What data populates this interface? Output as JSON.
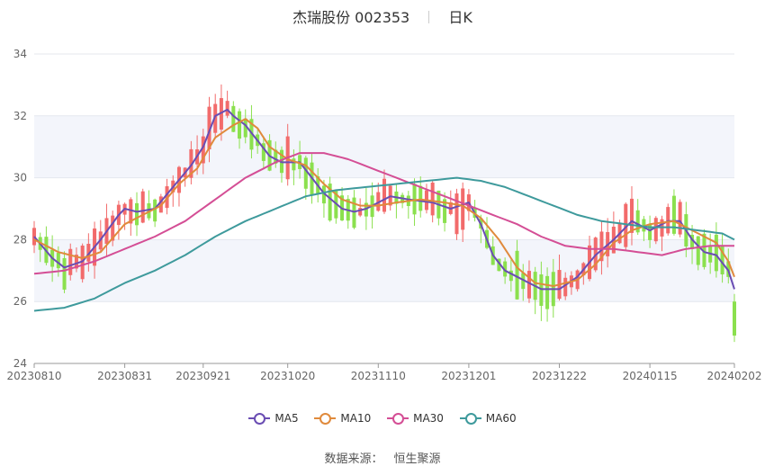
{
  "title": {
    "name": "杰瑞股份 002353",
    "period": "日K"
  },
  "source": {
    "label": "数据来源：",
    "value": "恒生聚源"
  },
  "chart_data": {
    "type": "candlestick",
    "ylim": [
      24,
      34
    ],
    "yticks": [
      24,
      26,
      28,
      30,
      32,
      34
    ],
    "x_tick_labels": [
      "20230810",
      "20230831",
      "20230921",
      "20231020",
      "20231110",
      "20231201",
      "20231222",
      "20240115",
      "20240202"
    ],
    "x_tick_index": [
      0,
      15,
      28,
      42,
      57,
      72,
      87,
      102,
      116
    ],
    "n_days": 117,
    "up_color": "#f26b6b",
    "down_color": "#8be04e",
    "grid": true,
    "band_color": "#f3f5fb",
    "legend_position": "bottom",
    "series": [
      {
        "name": "MA5",
        "color": "#6a4db3",
        "anchors": [
          [
            0,
            28.1
          ],
          [
            3,
            27.4
          ],
          [
            5,
            27.1
          ],
          [
            8,
            27.3
          ],
          [
            11,
            28.0
          ],
          [
            14,
            28.8
          ],
          [
            15,
            29.0
          ],
          [
            17,
            28.9
          ],
          [
            20,
            29.0
          ],
          [
            23,
            29.7
          ],
          [
            26,
            30.4
          ],
          [
            28,
            31.0
          ],
          [
            30,
            32.0
          ],
          [
            32,
            32.2
          ],
          [
            33,
            32.0
          ],
          [
            35,
            31.7
          ],
          [
            37,
            31.2
          ],
          [
            39,
            30.7
          ],
          [
            41,
            30.5
          ],
          [
            42,
            30.5
          ],
          [
            44,
            30.5
          ],
          [
            46,
            30.0
          ],
          [
            48,
            29.5
          ],
          [
            51,
            29.0
          ],
          [
            53,
            28.9
          ],
          [
            55,
            29.0
          ],
          [
            57,
            29.2
          ],
          [
            59,
            29.4
          ],
          [
            62,
            29.3
          ],
          [
            66,
            29.2
          ],
          [
            69,
            29.0
          ],
          [
            72,
            29.2
          ],
          [
            74,
            28.5
          ],
          [
            76,
            27.5
          ],
          [
            78,
            27.0
          ],
          [
            81,
            26.7
          ],
          [
            84,
            26.4
          ],
          [
            87,
            26.4
          ],
          [
            90,
            26.8
          ],
          [
            93,
            27.5
          ],
          [
            96,
            28.0
          ],
          [
            99,
            28.6
          ],
          [
            102,
            28.3
          ],
          [
            105,
            28.6
          ],
          [
            107,
            28.6
          ],
          [
            109,
            28.0
          ],
          [
            111,
            27.6
          ],
          [
            113,
            27.5
          ],
          [
            115,
            27.0
          ],
          [
            116,
            26.4
          ]
        ]
      },
      {
        "name": "MA10",
        "color": "#e08a3c",
        "anchors": [
          [
            0,
            28.0
          ],
          [
            4,
            27.6
          ],
          [
            8,
            27.4
          ],
          [
            11,
            27.6
          ],
          [
            15,
            28.5
          ],
          [
            18,
            28.8
          ],
          [
            21,
            29.1
          ],
          [
            24,
            29.8
          ],
          [
            27,
            30.3
          ],
          [
            30,
            31.3
          ],
          [
            33,
            31.7
          ],
          [
            35,
            31.9
          ],
          [
            37,
            31.6
          ],
          [
            39,
            31.0
          ],
          [
            42,
            30.6
          ],
          [
            45,
            30.4
          ],
          [
            48,
            29.8
          ],
          [
            51,
            29.3
          ],
          [
            54,
            29.1
          ],
          [
            57,
            29.1
          ],
          [
            60,
            29.2
          ],
          [
            64,
            29.3
          ],
          [
            68,
            29.2
          ],
          [
            71,
            29.1
          ],
          [
            74,
            28.7
          ],
          [
            77,
            28.0
          ],
          [
            80,
            27.1
          ],
          [
            83,
            26.6
          ],
          [
            86,
            26.5
          ],
          [
            90,
            26.7
          ],
          [
            93,
            27.2
          ],
          [
            96,
            27.9
          ],
          [
            99,
            28.3
          ],
          [
            102,
            28.5
          ],
          [
            106,
            28.6
          ],
          [
            110,
            28.2
          ],
          [
            113,
            27.9
          ],
          [
            115,
            27.3
          ],
          [
            116,
            26.8
          ]
        ]
      },
      {
        "name": "MA30",
        "color": "#d44e95",
        "anchors": [
          [
            0,
            26.9
          ],
          [
            5,
            27.0
          ],
          [
            10,
            27.3
          ],
          [
            15,
            27.7
          ],
          [
            20,
            28.1
          ],
          [
            25,
            28.6
          ],
          [
            30,
            29.3
          ],
          [
            35,
            30.0
          ],
          [
            40,
            30.5
          ],
          [
            44,
            30.8
          ],
          [
            48,
            30.8
          ],
          [
            52,
            30.6
          ],
          [
            56,
            30.3
          ],
          [
            60,
            30.0
          ],
          [
            64,
            29.7
          ],
          [
            68,
            29.4
          ],
          [
            72,
            29.1
          ],
          [
            76,
            28.8
          ],
          [
            80,
            28.5
          ],
          [
            84,
            28.1
          ],
          [
            88,
            27.8
          ],
          [
            92,
            27.7
          ],
          [
            96,
            27.7
          ],
          [
            100,
            27.6
          ],
          [
            104,
            27.5
          ],
          [
            108,
            27.7
          ],
          [
            112,
            27.8
          ],
          [
            116,
            27.8
          ]
        ]
      },
      {
        "name": "MA60",
        "color": "#3e9a9c",
        "anchors": [
          [
            0,
            25.7
          ],
          [
            5,
            25.8
          ],
          [
            10,
            26.1
          ],
          [
            15,
            26.6
          ],
          [
            20,
            27.0
          ],
          [
            25,
            27.5
          ],
          [
            30,
            28.1
          ],
          [
            35,
            28.6
          ],
          [
            40,
            29.0
          ],
          [
            45,
            29.4
          ],
          [
            50,
            29.6
          ],
          [
            55,
            29.7
          ],
          [
            60,
            29.8
          ],
          [
            65,
            29.9
          ],
          [
            70,
            30.0
          ],
          [
            74,
            29.9
          ],
          [
            78,
            29.7
          ],
          [
            82,
            29.4
          ],
          [
            86,
            29.1
          ],
          [
            90,
            28.8
          ],
          [
            94,
            28.6
          ],
          [
            98,
            28.5
          ],
          [
            102,
            28.4
          ],
          [
            106,
            28.4
          ],
          [
            110,
            28.3
          ],
          [
            114,
            28.2
          ],
          [
            116,
            28.0
          ]
        ]
      }
    ]
  }
}
